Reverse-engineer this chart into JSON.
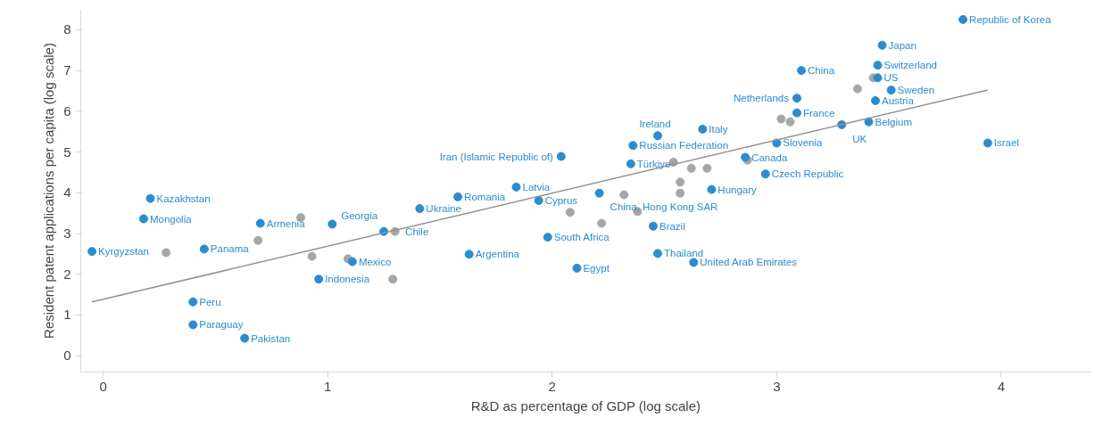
{
  "chart_data": {
    "type": "scatter",
    "xlabel": "R&D as percentage of GDP (log scale)",
    "ylabel": "Resident patent applications per capita (log scale)",
    "xlim": [
      -0.1,
      4.4
    ],
    "ylim": [
      -0.4,
      8.5
    ],
    "xticks": [
      0,
      1,
      2,
      3,
      4
    ],
    "yticks": [
      0,
      1,
      2,
      3,
      4,
      5,
      6,
      7,
      8
    ],
    "grid": false,
    "series": [
      {
        "marker": "circle",
        "color": "#a6a6a6",
        "x": [
          0.69,
          0.28,
          0.88,
          0.93,
          1.09,
          1.29,
          1.3,
          2.08,
          2.22,
          2.32,
          2.57,
          2.57,
          2.38,
          2.62,
          2.69,
          3.36,
          3.02,
          3.43,
          2.54,
          2.87,
          3.06
        ],
        "values": [
          2.83,
          2.53,
          3.39,
          2.44,
          2.38,
          1.88,
          3.05,
          3.52,
          3.25,
          3.95,
          4.26,
          3.99,
          3.54,
          4.6,
          4.6,
          6.55,
          5.81,
          6.82,
          4.75,
          4.8,
          5.74
        ]
      },
      {
        "marker": "circle",
        "color": "#2b8ccf",
        "x": [
          3.83,
          3.47,
          3.45,
          3.45,
          3.51,
          3.44,
          3.11,
          3.09,
          3.09,
          3.29,
          3.41,
          3.94,
          2.47,
          2.67,
          2.36,
          2.35,
          3.0,
          2.86,
          2.95,
          2.04,
          2.71,
          1.84,
          1.58,
          1.41,
          1.94,
          2.21,
          2.45,
          1.98,
          1.63,
          2.11,
          2.47,
          2.63,
          0.21,
          0.18,
          -0.05,
          0.45,
          0.7,
          1.02,
          1.25,
          1.11,
          0.96,
          0.4,
          0.4,
          0.63
        ],
        "values": [
          8.25,
          7.62,
          7.13,
          6.82,
          6.52,
          6.26,
          7.0,
          6.32,
          5.96,
          5.67,
          5.74,
          5.22,
          5.4,
          5.56,
          5.16,
          4.71,
          5.22,
          4.87,
          4.46,
          4.89,
          4.08,
          4.14,
          3.9,
          3.61,
          3.81,
          3.99,
          3.18,
          2.91,
          2.49,
          2.15,
          2.51,
          2.29,
          3.86,
          3.36,
          2.56,
          2.62,
          3.25,
          3.23,
          3.05,
          2.31,
          1.88,
          1.32,
          0.76,
          0.43
        ],
        "value_labels": [
          "Republic of Korea",
          "Japan",
          "Switzerland",
          "US",
          "Sweden",
          "Austria",
          "China",
          "Netherlands",
          "France",
          "UK",
          "Belgium",
          "Israel",
          "Ireland",
          "Italy",
          "Russian Federation",
          "Türkiye",
          "Slovenia",
          "Canada",
          "Czech Republic",
          "Iran (Islamic Republic of)",
          "Hungary",
          "Latvia",
          "Romania",
          "Ukraine",
          "Cyprus",
          "China, Hong Kong SAR",
          "Brazil",
          "South Africa",
          "Argentina",
          "Egypt",
          "Thailand",
          "United Arab Emirates",
          "Kazakhstan",
          "Mongolia",
          "Kyrgyzstan",
          "Panama",
          "Armenia",
          "Georgia",
          "Chile",
          "Mexico",
          "Indonesia",
          "Peru",
          "Paraguay",
          "Pakistan"
        ]
      },
      {
        "type": "line",
        "color": "#9a8f93",
        "x": [
          -0.05,
          3.94
        ],
        "values": [
          1.32,
          6.52
        ]
      }
    ]
  }
}
